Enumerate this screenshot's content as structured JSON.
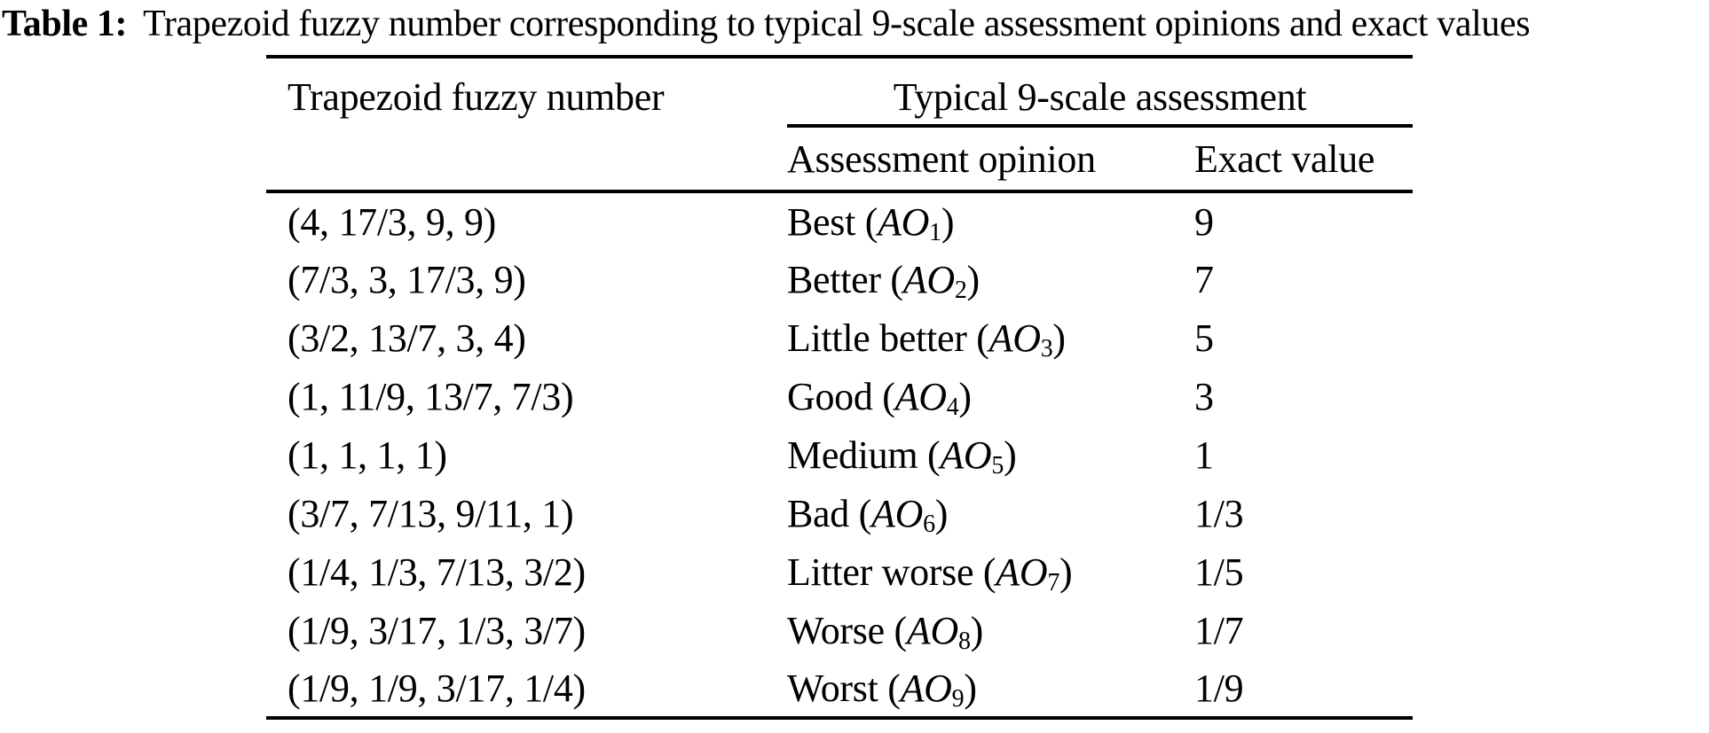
{
  "caption": {
    "label": "Table 1:",
    "text": "Trapezoid fuzzy number corresponding to typical 9-scale assessment opinions and exact values"
  },
  "table": {
    "header": {
      "fuzzy_column": "Trapezoid fuzzy number",
      "group": "Typical 9-scale assessment",
      "opinion_column": "Assessment opinion",
      "exact_column": "Exact value"
    },
    "rows": [
      {
        "fuzzy": "(4, 17/3, 9, 9)",
        "opinion_prefix": "Best (",
        "symbol": "AO",
        "subscript": "1",
        "suffix": ")",
        "exact": "9"
      },
      {
        "fuzzy": "(7/3, 3, 17/3, 9)",
        "opinion_prefix": "Better (",
        "symbol": "AO",
        "subscript": "2",
        "suffix": ")",
        "exact": "7"
      },
      {
        "fuzzy": "(3/2, 13/7, 3, 4)",
        "opinion_prefix": "Little better (",
        "symbol": "AO",
        "subscript": "3",
        "suffix": ")",
        "exact": "5"
      },
      {
        "fuzzy": "(1, 11/9, 13/7, 7/3)",
        "opinion_prefix": "Good (",
        "symbol": "AO",
        "subscript": "4",
        "suffix": ")",
        "exact": "3"
      },
      {
        "fuzzy": "(1, 1, 1, 1)",
        "opinion_prefix": "Medium (",
        "symbol": "AO",
        "subscript": "5",
        "suffix": ")",
        "exact": "1"
      },
      {
        "fuzzy": "(3/7, 7/13, 9/11, 1)",
        "opinion_prefix": "Bad (",
        "symbol": "AO",
        "subscript": "6",
        "suffix": ")",
        "exact": "1/3"
      },
      {
        "fuzzy": "(1/4, 1/3, 7/13, 3/2)",
        "opinion_prefix": "Litter worse (",
        "symbol": "AO",
        "subscript": "7",
        "suffix": ")",
        "exact": "1/5"
      },
      {
        "fuzzy": "(1/9, 3/17, 1/3, 3/7)",
        "opinion_prefix": "Worse (",
        "symbol": "AO",
        "subscript": "8",
        "suffix": ")",
        "exact": "1/7"
      },
      {
        "fuzzy": "(1/9, 1/9, 3/17, 1/4)",
        "opinion_prefix": "Worst (",
        "symbol": "AO",
        "subscript": "9",
        "suffix": ")",
        "exact": "1/9"
      }
    ]
  },
  "colors": {
    "text": "#000000",
    "background": "#ffffff",
    "rule": "#000000"
  }
}
